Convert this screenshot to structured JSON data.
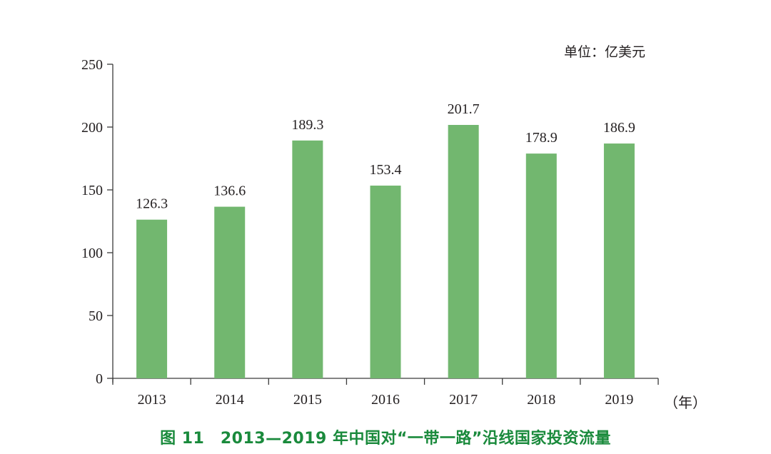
{
  "chart_data": {
    "type": "bar",
    "title": "图 11　2013—2019 年中国对“一带一路”沿线国家投资流量",
    "unit_label": "单位：亿美元",
    "xlabel": "（年）",
    "ylabel": "",
    "categories": [
      "2013",
      "2014",
      "2015",
      "2016",
      "2017",
      "2018",
      "2019"
    ],
    "values": [
      126.3,
      136.6,
      189.3,
      153.4,
      201.7,
      178.9,
      186.9
    ],
    "data_labels": [
      "126.3",
      "136.6",
      "189.3",
      "153.4",
      "201.7",
      "178.9",
      "186.9"
    ],
    "ylim": [
      0,
      250
    ],
    "yticks": [
      0,
      50,
      100,
      150,
      200,
      250
    ],
    "grid": false,
    "legend": null,
    "bar_color": "#72b76f",
    "caption_color": "#1a8a3c"
  }
}
